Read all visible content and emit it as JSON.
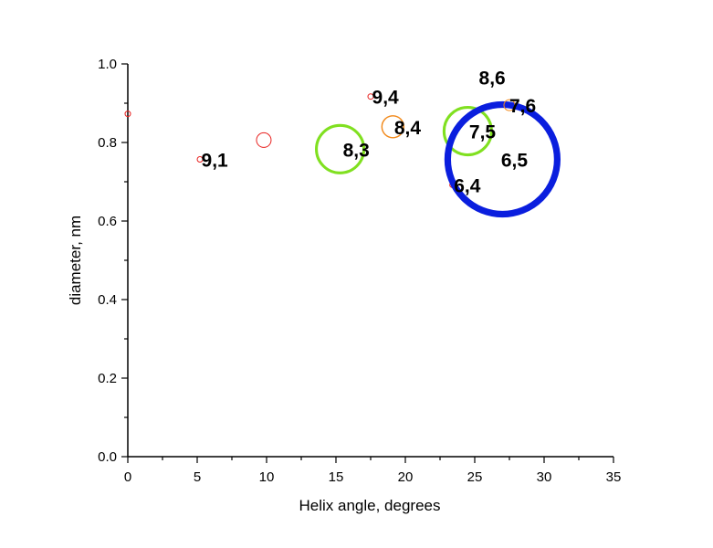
{
  "chart_data": {
    "type": "scatter",
    "title": "",
    "xlabel": "Helix angle, degrees",
    "ylabel": "diameter, nm",
    "xlim": [
      0,
      35
    ],
    "ylim": [
      0.0,
      1.0
    ],
    "x_ticks": [
      "0",
      "5",
      "10",
      "15",
      "20",
      "25",
      "30",
      "35"
    ],
    "y_ticks": [
      "0.0",
      "0.2",
      "0.4",
      "0.6",
      "0.8",
      "1.0"
    ],
    "grid": false,
    "legend": "none",
    "points": [
      {
        "x": 0.0,
        "y": 0.873,
        "size": 0.15,
        "color": "#e8201e"
      },
      {
        "x": 5.2,
        "y": 0.757,
        "size": 0.14,
        "color": "#e8201e"
      },
      {
        "x": 9.8,
        "y": 0.806,
        "size": 0.4,
        "color": "#e8201e"
      },
      {
        "x": 15.3,
        "y": 0.783,
        "size": 1.3,
        "color": "#80e020"
      },
      {
        "x": 17.5,
        "y": 0.917,
        "size": 0.15,
        "color": "#e8201e"
      },
      {
        "x": 19.1,
        "y": 0.84,
        "size": 0.6,
        "color": "#f28a1c"
      },
      {
        "x": 23.4,
        "y": 0.692,
        "size": 0.1,
        "color": "#e8201e"
      },
      {
        "x": 24.5,
        "y": 0.829,
        "size": 1.3,
        "color": "#80e020"
      },
      {
        "x": 27.0,
        "y": 0.757,
        "size": 3.0,
        "color": "#0a1ede"
      },
      {
        "x": 27.5,
        "y": 0.895,
        "size": 0.3,
        "color": "#f28a1c"
      }
    ],
    "annotations": [
      {
        "text": "9,1",
        "x": 5.3,
        "y": 0.757
      },
      {
        "text": "8,3",
        "x": 15.5,
        "y": 0.783
      },
      {
        "text": "9,4",
        "x": 17.6,
        "y": 0.917
      },
      {
        "text": "8,4",
        "x": 19.2,
        "y": 0.84
      },
      {
        "text": "8,6",
        "x": 25.3,
        "y": 0.966
      },
      {
        "text": "7,6",
        "x": 27.5,
        "y": 0.895
      },
      {
        "text": "7,5",
        "x": 24.6,
        "y": 0.829
      },
      {
        "text": "6,5",
        "x": 26.9,
        "y": 0.757
      },
      {
        "text": "6,4",
        "x": 23.5,
        "y": 0.692
      }
    ]
  }
}
